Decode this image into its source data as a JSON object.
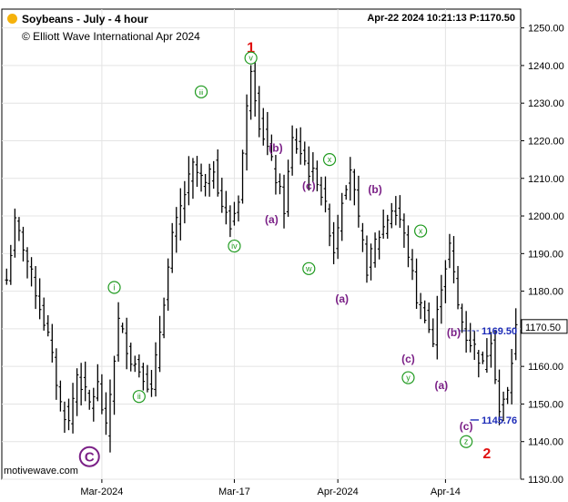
{
  "header": {
    "title": "Soybeans - July - 4 hour",
    "copyright": "© Elliott Wave International Apr 2024",
    "stamp": "Apr-22 2024  10:21:13  P:1170.50",
    "status_dot_color": "#f5b20c"
  },
  "footer": {
    "brand": "motivewave.com"
  },
  "chart_data": {
    "type": "ohlc",
    "title": "Soybeans - July - 4 hour",
    "ylim": [
      1130,
      1255
    ],
    "y_ticks": [
      1130,
      1140,
      1150,
      1160,
      1170,
      1180,
      1190,
      1200,
      1210,
      1220,
      1230,
      1240,
      1250
    ],
    "y_tick_labels": [
      "1130.00",
      "1140.00",
      "1150.00",
      "1160.00",
      "1170.00",
      "1180.00",
      "1190.00",
      "1200.00",
      "1210.00",
      "1220.00",
      "1230.00",
      "1240.00",
      "1250.00"
    ],
    "x_labels": [
      {
        "label": "Mar-2024",
        "bar": 23
      },
      {
        "label": "Mar-17",
        "bar": 55
      },
      {
        "label": "Apr-2024",
        "bar": 80
      },
      {
        "label": "Apr-14",
        "bar": 106
      }
    ],
    "bar_count": 124,
    "grid": true,
    "series_color": "#000000",
    "price_path": [
      [
        0,
        1183
      ],
      [
        2,
        1198
      ],
      [
        4,
        1192
      ],
      [
        7,
        1180
      ],
      [
        10,
        1168
      ],
      [
        13,
        1150
      ],
      [
        15,
        1145
      ],
      [
        17,
        1158
      ],
      [
        20,
        1150
      ],
      [
        22,
        1155
      ],
      [
        24,
        1143
      ],
      [
        27,
        1172
      ],
      [
        30,
        1162
      ],
      [
        33,
        1158
      ],
      [
        35,
        1153
      ],
      [
        38,
        1178
      ],
      [
        40,
        1194
      ],
      [
        43,
        1206
      ],
      [
        45,
        1213
      ],
      [
        48,
        1208
      ],
      [
        50,
        1213
      ],
      [
        52,
        1203
      ],
      [
        54,
        1197
      ],
      [
        56,
        1205
      ],
      [
        59,
        1240
      ],
      [
        61,
        1225
      ],
      [
        63,
        1218
      ],
      [
        65,
        1210
      ],
      [
        67,
        1202
      ],
      [
        69,
        1220
      ],
      [
        71,
        1217
      ],
      [
        73,
        1212
      ],
      [
        75,
        1210
      ],
      [
        77,
        1202
      ],
      [
        79,
        1191
      ],
      [
        81,
        1205
      ],
      [
        83,
        1213
      ],
      [
        85,
        1198
      ],
      [
        87,
        1186
      ],
      [
        89,
        1193
      ],
      [
        91,
        1197
      ],
      [
        93,
        1202
      ],
      [
        95,
        1199
      ],
      [
        97,
        1190
      ],
      [
        99,
        1178
      ],
      [
        101,
        1174
      ],
      [
        103,
        1166
      ],
      [
        105,
        1182
      ],
      [
        107,
        1192
      ],
      [
        109,
        1176
      ],
      [
        111,
        1168
      ],
      [
        113,
        1165
      ],
      [
        115,
        1160
      ],
      [
        117,
        1168
      ],
      [
        119,
        1148
      ],
      [
        121,
        1153
      ],
      [
        123,
        1170
      ]
    ],
    "labels": [
      {
        "text": "1",
        "style": "primary-red",
        "bar": 59,
        "price": 1245
      },
      {
        "text": "2",
        "style": "primary-red",
        "bar": 116,
        "price": 1137
      },
      {
        "text": "C",
        "style": "circle-purple",
        "bar": 20,
        "price": 1136
      },
      {
        "text": "i",
        "style": "circle-green",
        "bar": 26,
        "price": 1181
      },
      {
        "text": "ii",
        "style": "circle-green",
        "bar": 32,
        "price": 1152
      },
      {
        "text": "iii",
        "style": "circle-green",
        "bar": 47,
        "price": 1233
      },
      {
        "text": "iv",
        "style": "circle-green",
        "bar": 55,
        "price": 1192
      },
      {
        "text": "v",
        "style": "circle-green",
        "bar": 59,
        "price": 1242
      },
      {
        "text": "(b)",
        "style": "wave-purple",
        "bar": 65,
        "price": 1218
      },
      {
        "text": "(a)",
        "style": "wave-purple",
        "bar": 64,
        "price": 1199
      },
      {
        "text": "(c)",
        "style": "wave-purple",
        "bar": 73,
        "price": 1208
      },
      {
        "text": "w",
        "style": "circle-green",
        "bar": 73,
        "price": 1186
      },
      {
        "text": "x",
        "style": "circle-green",
        "bar": 78,
        "price": 1215
      },
      {
        "text": "(a)",
        "style": "wave-purple",
        "bar": 81,
        "price": 1178
      },
      {
        "text": "(b)",
        "style": "wave-purple",
        "bar": 89,
        "price": 1207
      },
      {
        "text": "x",
        "style": "circle-green",
        "bar": 100,
        "price": 1196
      },
      {
        "text": "(c)",
        "style": "wave-purple",
        "bar": 97,
        "price": 1162
      },
      {
        "text": "y",
        "style": "circle-green",
        "bar": 97,
        "price": 1157
      },
      {
        "text": "(b)",
        "style": "wave-purple",
        "bar": 108,
        "price": 1169
      },
      {
        "text": "(a)",
        "style": "wave-purple",
        "bar": 105,
        "price": 1155
      },
      {
        "text": "(c)",
        "style": "wave-purple",
        "bar": 111,
        "price": 1144
      },
      {
        "text": "z",
        "style": "circle-green",
        "bar": 111,
        "price": 1140
      }
    ],
    "levels": [
      {
        "value": 1169.5,
        "label": "1169.50",
        "style": "dashed",
        "start_bar": 108
      },
      {
        "value": 1145.76,
        "label": "1145.76",
        "style": "solid",
        "start_bar": 112
      }
    ],
    "last_price": {
      "value": 1170.5,
      "label": "1170.50"
    },
    "colors": {
      "red": "#e01010",
      "purple": "#7a1f86",
      "green": "#1f9a1f",
      "level": "#1c2bb8",
      "grid": "#e4e4e4"
    }
  }
}
